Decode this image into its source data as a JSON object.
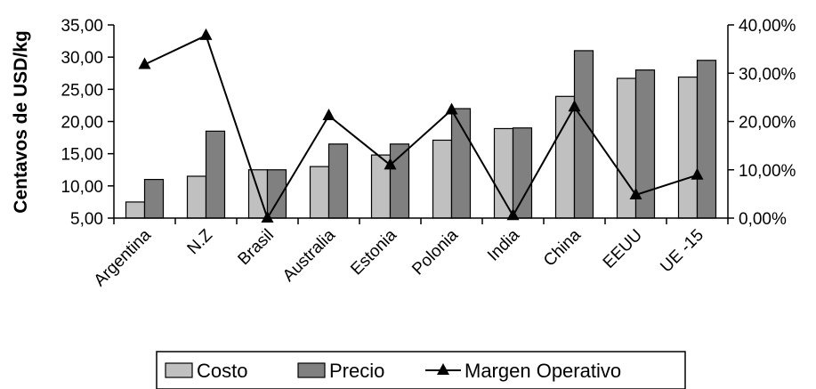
{
  "chart_data": {
    "type": "bar",
    "categories": [
      "Argentina",
      "N.Z",
      "Brasil",
      "Australia",
      "Estonia",
      "Polonia",
      "India",
      "China",
      "EEUU",
      "UE -15"
    ],
    "series": [
      {
        "name": "Costo",
        "type": "bar",
        "axis": "left",
        "color": "#c0c0c0",
        "values": [
          7.5,
          11.5,
          12.5,
          13.0,
          14.8,
          17.1,
          18.9,
          23.9,
          26.7,
          26.9
        ]
      },
      {
        "name": "Precio",
        "type": "bar",
        "axis": "left",
        "color": "#808080",
        "values": [
          11.0,
          18.5,
          12.5,
          16.5,
          16.5,
          22.0,
          19.0,
          31.0,
          28.0,
          29.5
        ]
      },
      {
        "name": "Margen Operativo",
        "type": "line",
        "axis": "right",
        "color": "#000000",
        "marker": "triangle",
        "values": [
          31.8,
          37.8,
          0.0,
          21.2,
          11.0,
          22.4,
          0.5,
          23.0,
          4.8,
          8.9
        ]
      }
    ],
    "ylabel": "Centavos de USD/kg",
    "ylim": [
      5,
      35
    ],
    "yticks": [
      "5,00",
      "10,00",
      "15,00",
      "20,00",
      "25,00",
      "30,00",
      "35,00"
    ],
    "y2lim": [
      0,
      40
    ],
    "y2ticks": [
      "0,00%",
      "10,00%",
      "20,00%",
      "30,00%",
      "40,00%"
    ],
    "grid": false,
    "legend_position": "bottom",
    "legend": [
      {
        "label": "Costo",
        "swatch": "bar-light"
      },
      {
        "label": "Precio",
        "swatch": "bar-dark"
      },
      {
        "label": "Margen Operativo",
        "swatch": "line-triangle"
      }
    ]
  }
}
